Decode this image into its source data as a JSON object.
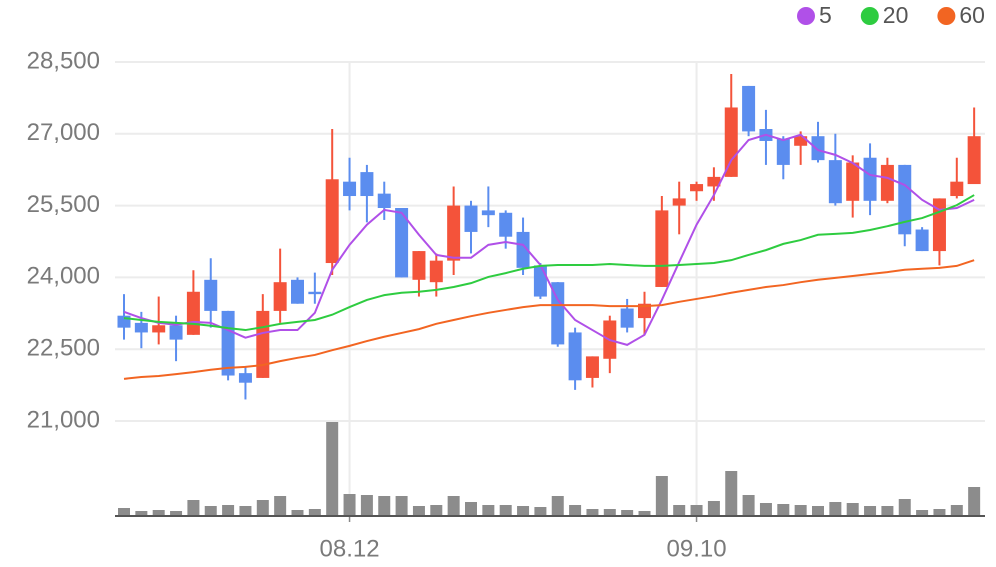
{
  "chart_data": {
    "type": "candlestick",
    "categories": [
      null,
      null,
      null,
      null,
      null,
      null,
      null,
      null,
      null,
      null,
      null,
      null,
      null,
      "08.12",
      null,
      null,
      null,
      null,
      null,
      null,
      null,
      null,
      null,
      null,
      null,
      null,
      null,
      null,
      null,
      null,
      null,
      null,
      null,
      "09.10",
      null,
      null,
      null,
      null,
      null,
      null,
      null,
      null,
      null,
      null,
      null,
      null,
      null,
      null,
      null,
      null
    ],
    "open": [
      23200,
      23050,
      22850,
      23000,
      22800,
      23950,
      23300,
      22000,
      21900,
      23300,
      23950,
      23700,
      24300,
      26000,
      26200,
      25750,
      25450,
      23950,
      23900,
      24350,
      25500,
      25400,
      25350,
      24950,
      24250,
      23900,
      22850,
      21900,
      22300,
      23350,
      23150,
      23800,
      25500,
      25800,
      25900,
      26100,
      28000,
      27100,
      26900,
      26750,
      26950,
      26450,
      25600,
      26500,
      25600,
      26350,
      25000,
      24550,
      25700,
      25950
    ],
    "high": [
      23650,
      23280,
      23600,
      23200,
      24150,
      24400,
      23300,
      22150,
      23650,
      24600,
      24000,
      24100,
      27100,
      26500,
      26350,
      26000,
      25450,
      24550,
      24500,
      25900,
      25600,
      25900,
      25400,
      25250,
      24300,
      23900,
      22950,
      22350,
      23200,
      23550,
      23700,
      25700,
      26000,
      26000,
      26300,
      28250,
      28000,
      27500,
      26950,
      27050,
      27250,
      27000,
      26550,
      26800,
      26500,
      26350,
      25050,
      25650,
      26500,
      27550
    ],
    "low": [
      22700,
      22520,
      22600,
      22250,
      22800,
      22950,
      21850,
      21450,
      21900,
      23050,
      23450,
      23450,
      24050,
      25400,
      25150,
      25200,
      24000,
      23600,
      23600,
      24050,
      24500,
      25050,
      24600,
      24050,
      23550,
      22550,
      21650,
      21700,
      22000,
      22850,
      22800,
      23800,
      24900,
      25600,
      25600,
      26100,
      26950,
      26350,
      26050,
      26350,
      26400,
      25500,
      25250,
      25300,
      25550,
      24650,
      24550,
      24250,
      25650,
      25950
    ],
    "close": [
      22950,
      22850,
      23000,
      22700,
      23700,
      23300,
      21950,
      21800,
      23300,
      23900,
      23450,
      23650,
      26050,
      25700,
      25700,
      25450,
      24000,
      24550,
      24350,
      25500,
      24950,
      25300,
      24850,
      24200,
      23600,
      22600,
      21850,
      22350,
      23100,
      22950,
      23450,
      25400,
      25650,
      25950,
      26100,
      27550,
      27050,
      26850,
      26350,
      26950,
      26450,
      25550,
      26400,
      25600,
      26350,
      24900,
      24550,
      25650,
      26000,
      26950
    ],
    "up_color": "#f4533a",
    "down_color": "#5b8def",
    "series": [
      {
        "name": "5",
        "color": "#b050e8",
        "values": [
          23280,
          23150,
          23050,
          23010,
          23070,
          23050,
          22900,
          22740,
          22840,
          22900,
          22900,
          23260,
          24160,
          24680,
          25100,
          25410,
          25350,
          24890,
          24470,
          24410,
          24410,
          24680,
          24740,
          24680,
          24260,
          23530,
          23110,
          22900,
          22690,
          22590,
          22800,
          23530,
          24320,
          25100,
          25720,
          26450,
          26870,
          26980,
          26870,
          26980,
          26660,
          26560,
          26390,
          26140,
          26080,
          25930,
          25620,
          25410,
          25450,
          25620
        ]
      },
      {
        "name": "20",
        "color": "#2ecc40",
        "values": [
          23150,
          23110,
          23070,
          23050,
          23030,
          22990,
          22940,
          22900,
          22960,
          23030,
          23070,
          23110,
          23220,
          23380,
          23530,
          23630,
          23680,
          23700,
          23740,
          23800,
          23880,
          24010,
          24090,
          24180,
          24240,
          24260,
          24260,
          24260,
          24280,
          24260,
          24240,
          24240,
          24260,
          24280,
          24300,
          24360,
          24470,
          24570,
          24700,
          24780,
          24890,
          24910,
          24930,
          24990,
          25070,
          25160,
          25240,
          25370,
          25510,
          25720
        ]
      },
      {
        "name": "60",
        "color": "#f26522",
        "values": [
          21880,
          21920,
          21940,
          21980,
          22020,
          22070,
          22110,
          22130,
          22170,
          22250,
          22320,
          22380,
          22480,
          22570,
          22670,
          22760,
          22840,
          22920,
          23030,
          23110,
          23190,
          23260,
          23320,
          23380,
          23420,
          23420,
          23420,
          23420,
          23400,
          23400,
          23400,
          23420,
          23490,
          23550,
          23610,
          23680,
          23740,
          23800,
          23840,
          23900,
          23950,
          23990,
          24030,
          24070,
          24110,
          24160,
          24180,
          24200,
          24240,
          24360
        ]
      }
    ],
    "volume": {
      "color": "#8c8c8c",
      "values": [
        8,
        5,
        6,
        5,
        16,
        10,
        11,
        10,
        16,
        20,
        6,
        7,
        94,
        22,
        21,
        20,
        20,
        10,
        11,
        20,
        14,
        11,
        11,
        10,
        9,
        20,
        11,
        7,
        7,
        6,
        5,
        40,
        11,
        11,
        15,
        45,
        21,
        13,
        12,
        11,
        10,
        14,
        13,
        10,
        10,
        17,
        6,
        7,
        11,
        29
      ]
    },
    "ylim": [
      21000,
      28500
    ],
    "yticks": [
      {
        "value": 21000,
        "label": "21,000"
      },
      {
        "value": 22500,
        "label": "22,500"
      },
      {
        "value": 24000,
        "label": "24,000"
      },
      {
        "value": 25500,
        "label": "25,500"
      },
      {
        "value": 27000,
        "label": "27,000"
      },
      {
        "value": 28500,
        "label": "28,500"
      }
    ],
    "grid": true
  }
}
